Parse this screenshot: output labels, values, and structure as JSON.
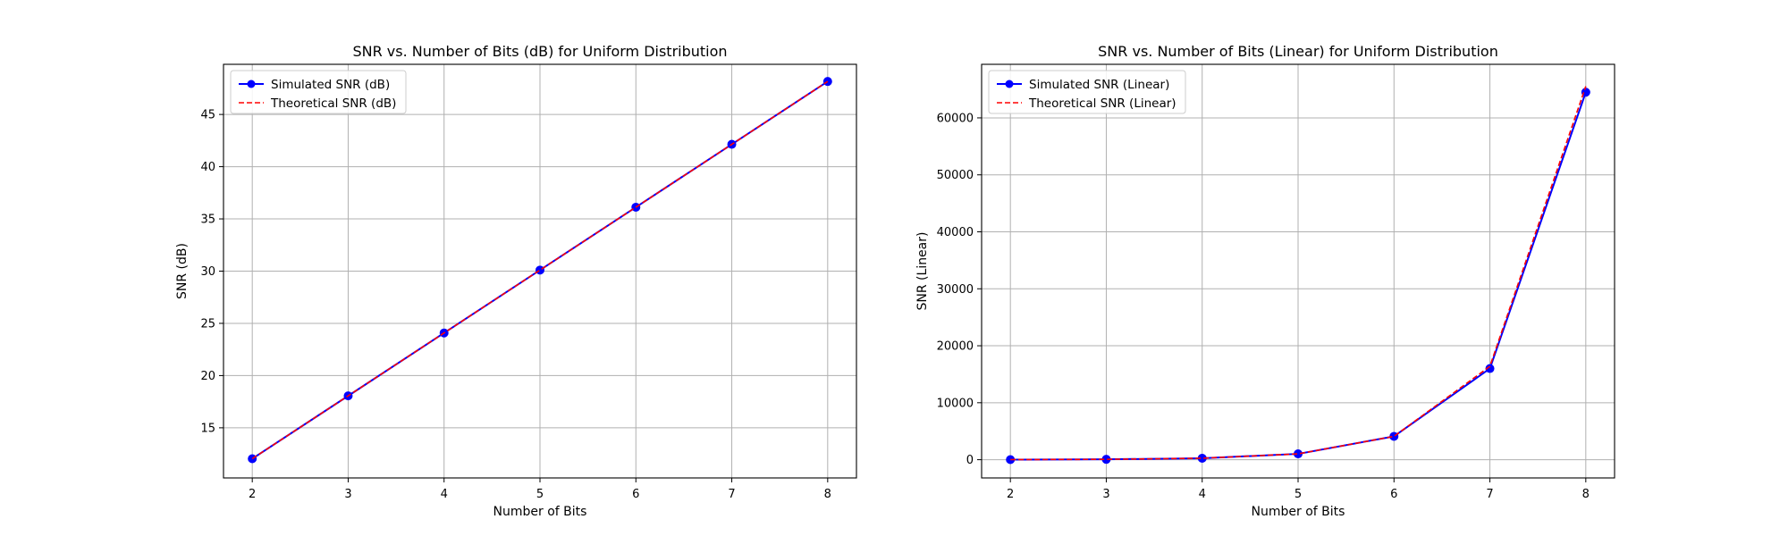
{
  "figure": {
    "background": "#ffffff",
    "colors": {
      "simulated": "#0000ff",
      "theoretical": "#ff0000",
      "grid": "#b0b0b0",
      "axes": "#000000"
    }
  },
  "chart_data": [
    {
      "type": "line",
      "title": "SNR vs. Number of Bits (dB) for Uniform Distribution",
      "xlabel": "Number of Bits",
      "ylabel": "SNR (dB)",
      "x": [
        2,
        3,
        4,
        5,
        6,
        7,
        8
      ],
      "xlim": [
        1.7,
        8.3
      ],
      "ylim": [
        10.2,
        49.8
      ],
      "xticks": [
        2,
        3,
        4,
        5,
        6,
        7,
        8
      ],
      "yticks": [
        15,
        20,
        25,
        30,
        35,
        40,
        45
      ],
      "grid": true,
      "legend_position": "upper-left",
      "series": [
        {
          "name": "Simulated SNR (dB)",
          "style": "solid-marker",
          "values": [
            12.04,
            18.06,
            24.08,
            30.1,
            36.12,
            42.14,
            48.16
          ]
        },
        {
          "name": "Theoretical SNR (dB)",
          "style": "dashed",
          "values": [
            12.04,
            18.06,
            24.08,
            30.1,
            36.12,
            42.14,
            48.16
          ]
        }
      ]
    },
    {
      "type": "line",
      "title": "SNR vs. Number of Bits (Linear) for Uniform Distribution",
      "xlabel": "Number of Bits",
      "ylabel": "SNR (Linear)",
      "x": [
        2,
        3,
        4,
        5,
        6,
        7,
        8
      ],
      "xlim": [
        1.7,
        8.3
      ],
      "ylim": [
        -3200,
        69400
      ],
      "xticks": [
        2,
        3,
        4,
        5,
        6,
        7,
        8
      ],
      "yticks": [
        0,
        10000,
        20000,
        30000,
        40000,
        50000,
        60000
      ],
      "grid": true,
      "legend_position": "upper-left",
      "series": [
        {
          "name": "Simulated SNR (Linear)",
          "style": "solid-marker",
          "values": [
            16,
            64,
            256,
            1024,
            4096,
            16000,
            64500
          ]
        },
        {
          "name": "Theoretical SNR (Linear)",
          "style": "dashed",
          "values": [
            16,
            64,
            256,
            1024,
            4096,
            16384,
            65536
          ]
        }
      ]
    }
  ]
}
